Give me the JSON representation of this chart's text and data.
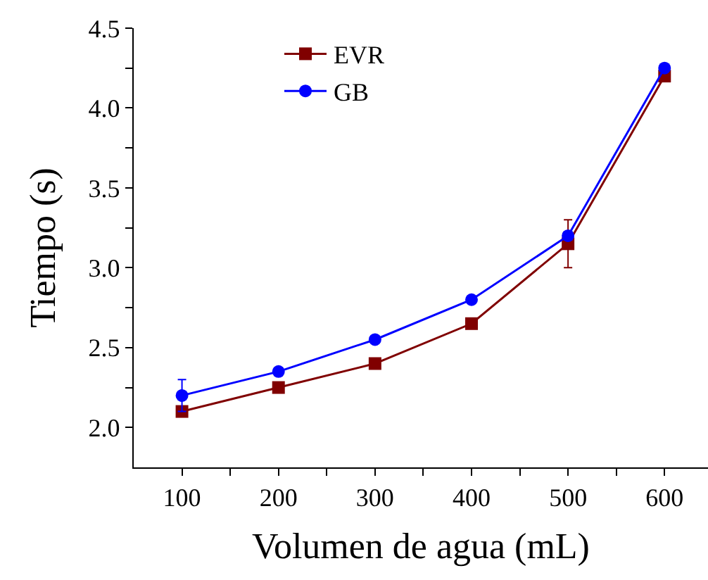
{
  "chart_data": {
    "type": "line",
    "xlabel": "Volumen de agua (mL)",
    "ylabel": "Tiempo (s)",
    "x": [
      100,
      200,
      300,
      400,
      500,
      600
    ],
    "series": [
      {
        "name": "EVR",
        "color": "#800000",
        "marker": "square",
        "values": [
          2.1,
          2.25,
          2.4,
          2.65,
          3.15,
          4.2
        ],
        "errors": [
          null,
          null,
          null,
          null,
          0.15,
          null
        ]
      },
      {
        "name": "GB",
        "color": "#0000ff",
        "marker": "circle",
        "values": [
          2.2,
          2.35,
          2.55,
          2.8,
          3.2,
          4.25
        ],
        "errors": [
          0.1,
          null,
          null,
          null,
          null,
          null
        ]
      }
    ],
    "xlim": [
      50,
      645
    ],
    "xticks": [
      100,
      {
        "value": 150,
        "label": null
      },
      200,
      {
        "value": 250,
        "label": null
      },
      300,
      {
        "value": 350,
        "label": null
      },
      400,
      {
        "value": 450,
        "label": null
      },
      500,
      {
        "value": 550,
        "label": null
      },
      600
    ],
    "ylim": [
      1.75,
      4.5
    ],
    "yticks": [
      {
        "value": 2,
        "label": "2.0"
      },
      {
        "value": 2.25,
        "label": null
      },
      2.5,
      {
        "value": 2.75,
        "label": null
      },
      {
        "value": 3,
        "label": "3.0"
      },
      {
        "value": 3.25,
        "label": null
      },
      3.5,
      {
        "value": 3.75,
        "label": null
      },
      {
        "value": 4,
        "label": "4.0"
      },
      {
        "value": 4.25,
        "label": null
      },
      4.5
    ],
    "legend": "top",
    "line_style": "solid"
  }
}
